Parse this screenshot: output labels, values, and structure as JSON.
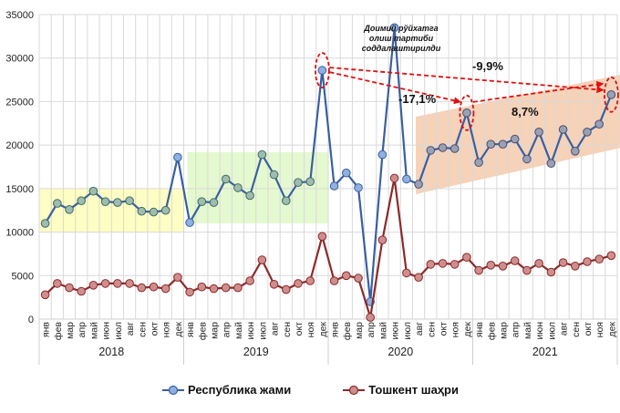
{
  "chart_data": {
    "type": "line",
    "title": "",
    "xlabel": "",
    "ylabel": "",
    "ylim": [
      0,
      35000
    ],
    "yticks": [
      "0",
      "5000",
      "10000",
      "15000",
      "20000",
      "25000",
      "30000",
      "35000"
    ],
    "grid": true,
    "legend_position": "bottom",
    "years": [
      "2018",
      "2019",
      "2020",
      "2021"
    ],
    "months": [
      "янв",
      "фев",
      "мар",
      "апр",
      "май",
      "июн",
      "июл",
      "авг",
      "сен",
      "окт",
      "ноя",
      "дек"
    ],
    "series": [
      {
        "name": "Республика жами",
        "color": "#3a5fa0",
        "marker_color": "#8fb0e0",
        "values": [
          11000,
          13300,
          12600,
          13600,
          14700,
          13500,
          13400,
          13600,
          12400,
          12300,
          12500,
          18600,
          11100,
          13500,
          13400,
          16100,
          15100,
          14200,
          18900,
          16600,
          13600,
          15700,
          15800,
          28600,
          15300,
          16800,
          15100,
          2000,
          18900,
          33500,
          16100,
          15500,
          19400,
          19700,
          19600,
          23700,
          18000,
          20100,
          20100,
          20700,
          18400,
          21500,
          17900,
          21800,
          19300,
          21500,
          22400,
          25800
        ]
      },
      {
        "name": "Тошкент шаҳри",
        "color": "#8b2a2a",
        "marker_color": "#cf8e8e",
        "values": [
          2800,
          4100,
          3600,
          3200,
          3900,
          4100,
          4100,
          4100,
          3600,
          3700,
          3500,
          4800,
          3100,
          3700,
          3500,
          3600,
          3600,
          4400,
          6800,
          4000,
          3400,
          4100,
          4400,
          9500,
          4400,
          5000,
          4700,
          200,
          9100,
          16200,
          5300,
          4800,
          6300,
          6400,
          6300,
          7100,
          5600,
          6200,
          6100,
          6700,
          5600,
          6400,
          5400,
          6500,
          6100,
          6600,
          6900,
          7300
        ]
      }
    ],
    "highlight_bands": [
      {
        "name": "2018",
        "color": "#fdfdc4",
        "from_index": 0,
        "to_index": 11,
        "ymin": 10000,
        "ymax": 15000
      },
      {
        "name": "2019",
        "color": "#e4f9cf",
        "from_index": 12,
        "to_index": 23,
        "ymin": 11000,
        "ymax": 19200
      },
      {
        "name": "2020-2021 trend",
        "color": "#f4cdb0",
        "from_index": 31,
        "to_index": 47
      }
    ],
    "annotations": [
      {
        "text": "Доимий рўйхатга",
        "index": 29
      },
      {
        "text": "олиш тартиби",
        "index": 29
      },
      {
        "text": "соддалаштирилди",
        "index": 29
      },
      {
        "text": "-9,9%",
        "from_index": 23,
        "to_index": 47
      },
      {
        "text": "-17,1%",
        "from_index": 23,
        "to_index": 35
      },
      {
        "text": "8,7%",
        "from_index": 35,
        "to_index": 47
      }
    ],
    "annotation_color": "#e01010"
  },
  "legend": {
    "items": [
      "Республика жами",
      "Тошкент шаҳри"
    ]
  }
}
